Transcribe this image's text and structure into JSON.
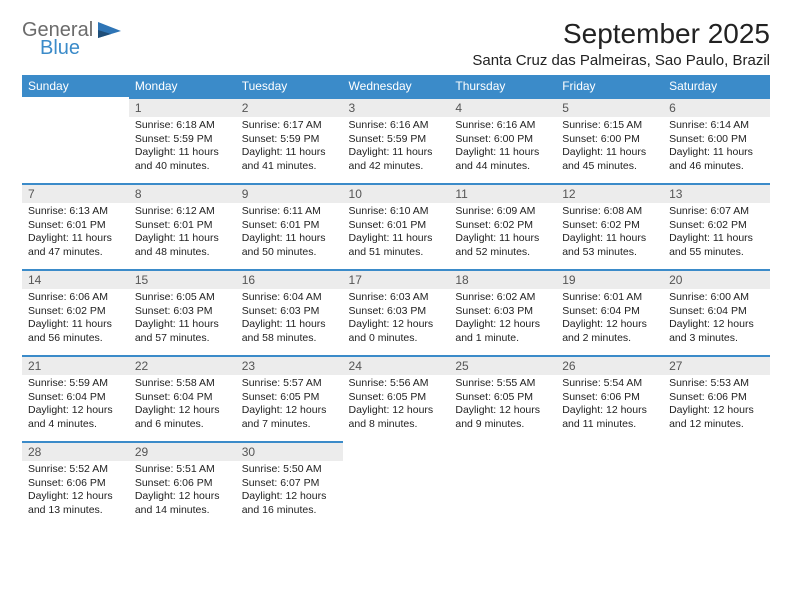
{
  "logo": {
    "line1": "General",
    "line2": "Blue"
  },
  "title": "September 2025",
  "location": "Santa Cruz das Palmeiras, Sao Paulo, Brazil",
  "colors": {
    "header_bg": "#3b8bc9",
    "header_text": "#ffffff",
    "daynum_bg": "#ececec",
    "daynum_border": "#3b8bc9",
    "body_text": "#222222",
    "logo_gray": "#6b6b6b",
    "logo_blue": "#3b8bc9"
  },
  "day_headers": [
    "Sunday",
    "Monday",
    "Tuesday",
    "Wednesday",
    "Thursday",
    "Friday",
    "Saturday"
  ],
  "weeks": [
    [
      null,
      {
        "n": "1",
        "sr": "6:18 AM",
        "ss": "5:59 PM",
        "dl": "11 hours and 40 minutes."
      },
      {
        "n": "2",
        "sr": "6:17 AM",
        "ss": "5:59 PM",
        "dl": "11 hours and 41 minutes."
      },
      {
        "n": "3",
        "sr": "6:16 AM",
        "ss": "5:59 PM",
        "dl": "11 hours and 42 minutes."
      },
      {
        "n": "4",
        "sr": "6:16 AM",
        "ss": "6:00 PM",
        "dl": "11 hours and 44 minutes."
      },
      {
        "n": "5",
        "sr": "6:15 AM",
        "ss": "6:00 PM",
        "dl": "11 hours and 45 minutes."
      },
      {
        "n": "6",
        "sr": "6:14 AM",
        "ss": "6:00 PM",
        "dl": "11 hours and 46 minutes."
      }
    ],
    [
      {
        "n": "7",
        "sr": "6:13 AM",
        "ss": "6:01 PM",
        "dl": "11 hours and 47 minutes."
      },
      {
        "n": "8",
        "sr": "6:12 AM",
        "ss": "6:01 PM",
        "dl": "11 hours and 48 minutes."
      },
      {
        "n": "9",
        "sr": "6:11 AM",
        "ss": "6:01 PM",
        "dl": "11 hours and 50 minutes."
      },
      {
        "n": "10",
        "sr": "6:10 AM",
        "ss": "6:01 PM",
        "dl": "11 hours and 51 minutes."
      },
      {
        "n": "11",
        "sr": "6:09 AM",
        "ss": "6:02 PM",
        "dl": "11 hours and 52 minutes."
      },
      {
        "n": "12",
        "sr": "6:08 AM",
        "ss": "6:02 PM",
        "dl": "11 hours and 53 minutes."
      },
      {
        "n": "13",
        "sr": "6:07 AM",
        "ss": "6:02 PM",
        "dl": "11 hours and 55 minutes."
      }
    ],
    [
      {
        "n": "14",
        "sr": "6:06 AM",
        "ss": "6:02 PM",
        "dl": "11 hours and 56 minutes."
      },
      {
        "n": "15",
        "sr": "6:05 AM",
        "ss": "6:03 PM",
        "dl": "11 hours and 57 minutes."
      },
      {
        "n": "16",
        "sr": "6:04 AM",
        "ss": "6:03 PM",
        "dl": "11 hours and 58 minutes."
      },
      {
        "n": "17",
        "sr": "6:03 AM",
        "ss": "6:03 PM",
        "dl": "12 hours and 0 minutes."
      },
      {
        "n": "18",
        "sr": "6:02 AM",
        "ss": "6:03 PM",
        "dl": "12 hours and 1 minute."
      },
      {
        "n": "19",
        "sr": "6:01 AM",
        "ss": "6:04 PM",
        "dl": "12 hours and 2 minutes."
      },
      {
        "n": "20",
        "sr": "6:00 AM",
        "ss": "6:04 PM",
        "dl": "12 hours and 3 minutes."
      }
    ],
    [
      {
        "n": "21",
        "sr": "5:59 AM",
        "ss": "6:04 PM",
        "dl": "12 hours and 4 minutes."
      },
      {
        "n": "22",
        "sr": "5:58 AM",
        "ss": "6:04 PM",
        "dl": "12 hours and 6 minutes."
      },
      {
        "n": "23",
        "sr": "5:57 AM",
        "ss": "6:05 PM",
        "dl": "12 hours and 7 minutes."
      },
      {
        "n": "24",
        "sr": "5:56 AM",
        "ss": "6:05 PM",
        "dl": "12 hours and 8 minutes."
      },
      {
        "n": "25",
        "sr": "5:55 AM",
        "ss": "6:05 PM",
        "dl": "12 hours and 9 minutes."
      },
      {
        "n": "26",
        "sr": "5:54 AM",
        "ss": "6:06 PM",
        "dl": "12 hours and 11 minutes."
      },
      {
        "n": "27",
        "sr": "5:53 AM",
        "ss": "6:06 PM",
        "dl": "12 hours and 12 minutes."
      }
    ],
    [
      {
        "n": "28",
        "sr": "5:52 AM",
        "ss": "6:06 PM",
        "dl": "12 hours and 13 minutes."
      },
      {
        "n": "29",
        "sr": "5:51 AM",
        "ss": "6:06 PM",
        "dl": "12 hours and 14 minutes."
      },
      {
        "n": "30",
        "sr": "5:50 AM",
        "ss": "6:07 PM",
        "dl": "12 hours and 16 minutes."
      },
      null,
      null,
      null,
      null
    ]
  ],
  "labels": {
    "sunrise": "Sunrise:",
    "sunset": "Sunset:",
    "daylight": "Daylight:"
  }
}
